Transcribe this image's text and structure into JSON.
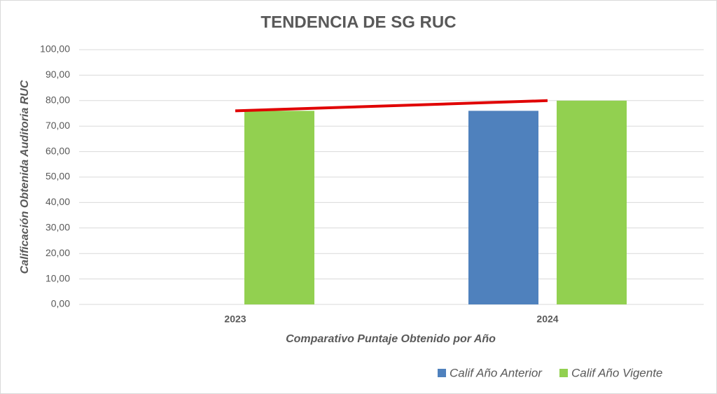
{
  "chart_data": {
    "type": "bar",
    "title": "TENDENCIA DE SG RUC",
    "x_label": "Comparativo Puntaje Obtenido por Año",
    "y_label": "Calificación Obtenida Auditoria RUC",
    "categories": [
      "2023",
      "2024"
    ],
    "series": [
      {
        "name": "Calif Año Anterior",
        "color": "#4f81bd",
        "values": [
          null,
          76
        ]
      },
      {
        "name": "Calif Año Vigente",
        "color": "#92d050",
        "values": [
          76,
          80
        ]
      }
    ],
    "trendline": {
      "series": 1,
      "color": "#e00000"
    },
    "ylim": [
      0,
      100
    ],
    "yticks": [
      {
        "value": 0,
        "label": "0,00"
      },
      {
        "value": 10,
        "label": "10,00"
      },
      {
        "value": 20,
        "label": "20,00"
      },
      {
        "value": 30,
        "label": "30,00"
      },
      {
        "value": 40,
        "label": "40,00"
      },
      {
        "value": 50,
        "label": "50,00"
      },
      {
        "value": 60,
        "label": "60,00"
      },
      {
        "value": 70,
        "label": "70,00"
      },
      {
        "value": 80,
        "label": "80,00"
      },
      {
        "value": 90,
        "label": "90,00"
      },
      {
        "value": 100,
        "label": "100,00"
      }
    ],
    "grid": true,
    "legend": "bottom-right"
  }
}
